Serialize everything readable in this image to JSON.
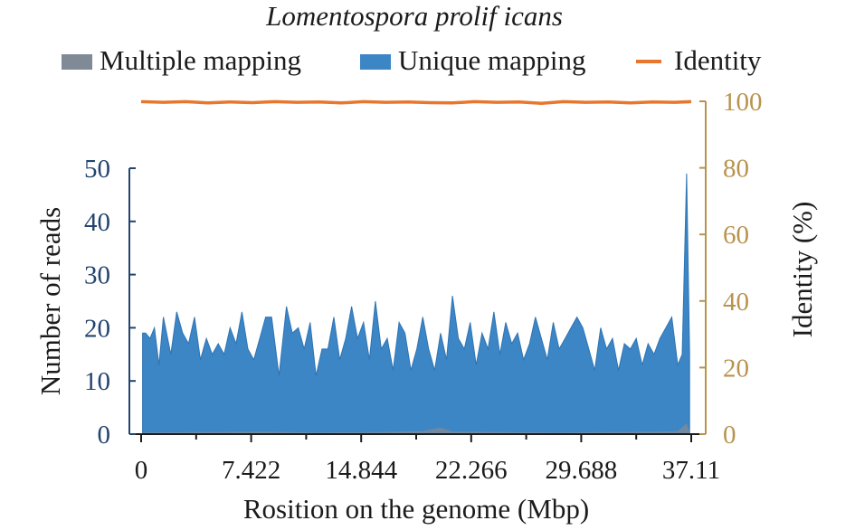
{
  "chart_data": {
    "type": "area",
    "title": "Lomentospora prolif icans",
    "xlabel": "Rosition on the genome (Mbp)",
    "ylabel_left": "Number of reads",
    "ylabel_right": "Identity (%)",
    "xlim": [
      0,
      37.11
    ],
    "ylim_left": [
      0,
      50
    ],
    "ylim_right": [
      0,
      100
    ],
    "x_ticks": [
      "0",
      "7.422",
      "14.844",
      "22.266",
      "29.688",
      "37.11"
    ],
    "x_tick_values": [
      0,
      7.422,
      14.844,
      22.266,
      29.688,
      37.11
    ],
    "y_ticks_left": [
      "0",
      "10",
      "20",
      "30",
      "40",
      "50"
    ],
    "y_ticks_right": [
      "0",
      "20",
      "40",
      "60",
      "80",
      "100"
    ],
    "legend": {
      "position": "top",
      "items": [
        {
          "label": "Multiple mapping",
          "color": "#7f8a96",
          "kind": "box"
        },
        {
          "label": "Unique mapping",
          "color": "#3c86c6",
          "kind": "box"
        },
        {
          "label": "Identity",
          "color": "#e8762d",
          "kind": "line"
        }
      ]
    },
    "colors": {
      "unique": "#3c86c6",
      "multiple": "#7f8a96",
      "identity": "#e8762d",
      "left_axis": "#22446e",
      "right_axis": "#b8934d"
    },
    "series": [
      {
        "name": "Unique mapping",
        "x": [
          0.1,
          0.3,
          0.6,
          0.9,
          1.2,
          1.5,
          2.0,
          2.4,
          2.8,
          3.2,
          3.6,
          4.0,
          4.4,
          4.8,
          5.2,
          5.6,
          6.0,
          6.4,
          6.8,
          7.2,
          7.6,
          8.0,
          8.4,
          8.8,
          9.3,
          9.8,
          10.2,
          10.6,
          11.0,
          11.4,
          11.8,
          12.2,
          12.6,
          13.0,
          13.4,
          13.8,
          14.2,
          14.6,
          15.0,
          15.4,
          15.8,
          16.2,
          16.6,
          17.0,
          17.4,
          17.8,
          18.2,
          18.6,
          19.0,
          19.4,
          19.8,
          20.2,
          20.6,
          21.0,
          21.4,
          21.8,
          22.2,
          22.6,
          23.0,
          23.4,
          23.8,
          24.2,
          24.6,
          25.0,
          25.4,
          25.8,
          26.2,
          26.6,
          27.0,
          27.4,
          27.8,
          28.2,
          28.6,
          29.0,
          29.4,
          29.8,
          30.2,
          30.6,
          31.0,
          31.4,
          31.8,
          32.2,
          32.6,
          33.0,
          33.4,
          33.8,
          34.2,
          34.6,
          35.0,
          35.4,
          35.8,
          36.2,
          36.5,
          36.8,
          37.0
        ],
        "values": [
          19,
          19,
          18,
          20,
          13,
          22,
          15,
          23,
          19,
          17,
          22,
          14,
          18,
          15,
          17,
          15,
          20,
          17,
          23,
          16,
          14,
          18,
          22,
          22,
          11,
          24,
          19,
          20,
          16,
          21,
          11,
          16,
          16,
          22,
          14,
          18,
          24,
          18,
          21,
          14,
          25,
          16,
          18,
          12,
          21,
          19,
          12,
          16,
          22,
          16,
          12,
          19,
          14,
          26,
          18,
          16,
          21,
          13,
          19,
          16,
          23,
          15,
          21,
          17,
          19,
          14,
          17,
          22,
          18,
          14,
          21,
          16,
          18,
          20,
          22,
          20,
          16,
          12,
          20,
          16,
          18,
          12,
          17,
          16,
          18,
          13,
          17,
          15,
          18,
          20,
          22,
          13,
          15,
          49,
          15
        ]
      },
      {
        "name": "Multiple mapping",
        "x": [
          0.1,
          4.0,
          8.0,
          12.0,
          16.0,
          19.0,
          20.2,
          21.0,
          24.0,
          28.0,
          32.0,
          35.0,
          36.2,
          36.8,
          37.0
        ],
        "values": [
          0.3,
          0.4,
          0.5,
          0.3,
          0.4,
          0.6,
          1.2,
          0.5,
          0.4,
          0.3,
          0.4,
          0.5,
          0.6,
          2.0,
          0.5
        ]
      },
      {
        "name": "Identity",
        "x": [
          0,
          1.5,
          3.0,
          4.5,
          6.0,
          7.5,
          9.0,
          10.5,
          12.0,
          13.5,
          15.0,
          16.5,
          18.0,
          19.5,
          21.0,
          22.5,
          24.0,
          25.5,
          27.0,
          28.5,
          30.0,
          31.5,
          33.0,
          34.5,
          36.0,
          37.11
        ],
        "values": [
          99.9,
          99.7,
          99.9,
          99.5,
          99.8,
          99.6,
          99.9,
          99.7,
          99.8,
          99.5,
          99.9,
          99.7,
          99.8,
          99.6,
          99.5,
          99.9,
          99.7,
          99.8,
          99.4,
          99.9,
          99.7,
          99.8,
          99.5,
          99.8,
          99.7,
          99.9
        ]
      }
    ]
  }
}
